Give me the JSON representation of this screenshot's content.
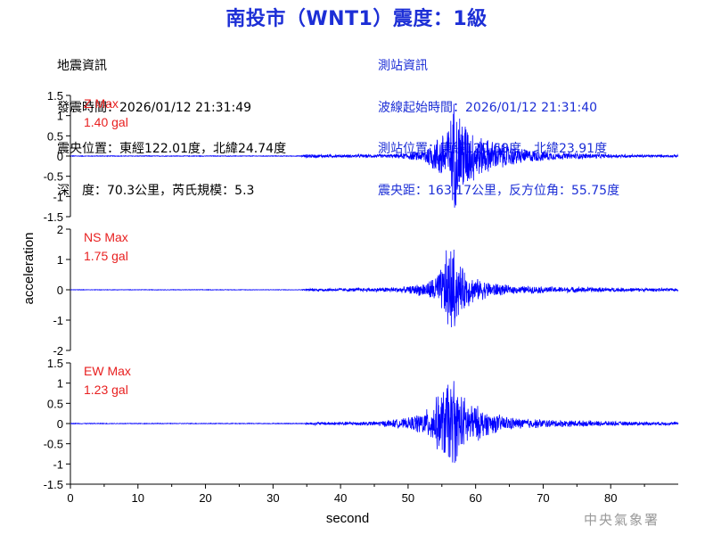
{
  "title": "南投市（WNT1）震度：1級",
  "quake_info": {
    "header": "地震資訊",
    "time": "發震時間：2026/01/12 21:31:49",
    "location": "震央位置：東經122.01度，北緯24.74度",
    "depth": "深　度：70.3公里，芮氏規模：5.3"
  },
  "station_info": {
    "header": "測站資訊",
    "wave_start": "波線起始時間：2026/01/12 21:31:40",
    "location": "測站位置：東經120.68度，北緯23.91度",
    "distance": "震央距：163.17公里，反方位角：55.75度"
  },
  "credit": "中央氣象署",
  "colors": {
    "trace": "#0000ff",
    "max_label": "#e82020",
    "title": "#1d2fd6"
  },
  "chart_data": [
    {
      "type": "line",
      "component": "Z",
      "max_label": "Z Max",
      "max_value": "1.40 gal",
      "ylim": [
        -1.5,
        1.5
      ],
      "yticks": [
        -1.5,
        -1,
        -0.5,
        0,
        0.5,
        1,
        1.5
      ],
      "ytick_labels": [
        "-1.5",
        "-1",
        "-0.5",
        "0",
        "0.5",
        "1",
        "1.5"
      ],
      "xlim": [
        0,
        90
      ],
      "envelope": [
        [
          0,
          0.01
        ],
        [
          34,
          0.01
        ],
        [
          35,
          0.05
        ],
        [
          40,
          0.04
        ],
        [
          48,
          0.05
        ],
        [
          52,
          0.15
        ],
        [
          54,
          0.45
        ],
        [
          56,
          0.9
        ],
        [
          57,
          1.4
        ],
        [
          58,
          1.2
        ],
        [
          59,
          0.8
        ],
        [
          61,
          0.5
        ],
        [
          64,
          0.35
        ],
        [
          67,
          0.2
        ],
        [
          72,
          0.1
        ],
        [
          80,
          0.05
        ],
        [
          90,
          0.03
        ]
      ]
    },
    {
      "type": "line",
      "component": "NS",
      "max_label": "NS Max",
      "max_value": "1.75 gal",
      "ylim": [
        -2,
        2
      ],
      "yticks": [
        -2,
        -1,
        0,
        1,
        2
      ],
      "ytick_labels": [
        "-2",
        "-1",
        "0",
        "1",
        "2"
      ],
      "xlim": [
        0,
        90
      ],
      "envelope": [
        [
          0,
          0.01
        ],
        [
          34,
          0.01
        ],
        [
          36,
          0.05
        ],
        [
          45,
          0.07
        ],
        [
          50,
          0.12
        ],
        [
          53,
          0.3
        ],
        [
          55,
          0.8
        ],
        [
          56,
          1.75
        ],
        [
          57,
          1.2
        ],
        [
          58,
          0.8
        ],
        [
          60,
          0.4
        ],
        [
          65,
          0.15
        ],
        [
          70,
          0.12
        ],
        [
          80,
          0.08
        ],
        [
          90,
          0.05
        ]
      ]
    },
    {
      "type": "line",
      "component": "EW",
      "max_label": "EW Max",
      "max_value": "1.23 gal",
      "ylim": [
        -1.5,
        1.5
      ],
      "yticks": [
        -1.5,
        -1,
        -0.5,
        0,
        0.5,
        1,
        1.5
      ],
      "ytick_labels": [
        "-1.5",
        "-1",
        "-0.5",
        "0",
        "0.5",
        "1",
        "1.5"
      ],
      "xlim": [
        0,
        90
      ],
      "xticks": [
        0,
        10,
        20,
        30,
        40,
        50,
        60,
        70,
        80
      ],
      "xtick_labels": [
        "0",
        "10",
        "20",
        "30",
        "40",
        "50",
        "60",
        "70",
        "80"
      ],
      "envelope": [
        [
          0,
          0.01
        ],
        [
          34,
          0.01
        ],
        [
          36,
          0.04
        ],
        [
          45,
          0.06
        ],
        [
          50,
          0.15
        ],
        [
          53,
          0.4
        ],
        [
          55,
          0.9
        ],
        [
          56,
          1.23
        ],
        [
          57,
          1.0
        ],
        [
          59,
          0.6
        ],
        [
          62,
          0.3
        ],
        [
          66,
          0.15
        ],
        [
          72,
          0.1
        ],
        [
          80,
          0.06
        ],
        [
          90,
          0.04
        ]
      ]
    }
  ],
  "axes": {
    "ylabel": "acceleration",
    "xlabel": "second"
  }
}
